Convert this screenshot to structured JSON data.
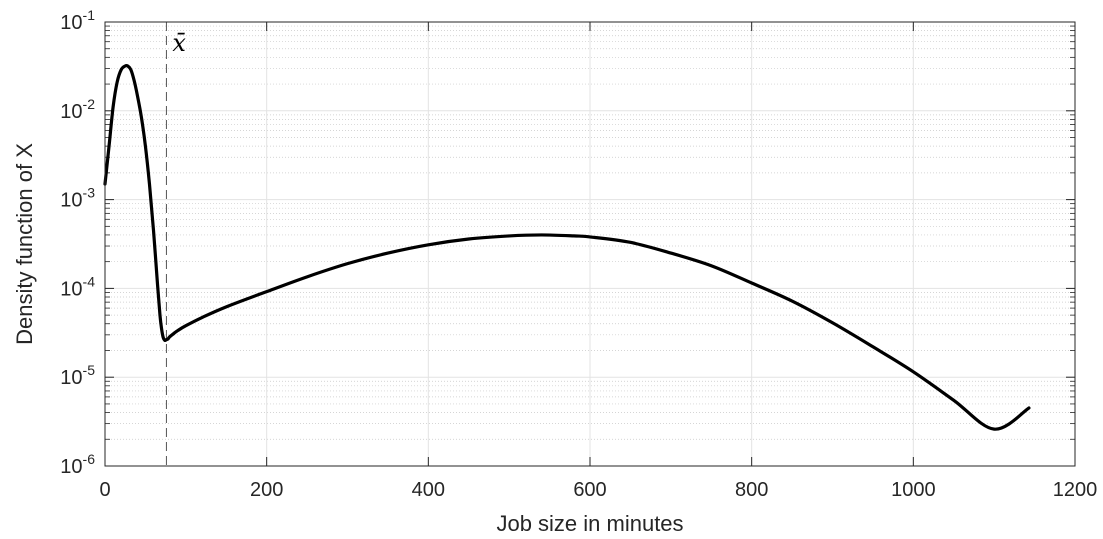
{
  "chart_data": {
    "type": "line",
    "xlabel": "Job size in minutes",
    "ylabel": "Density function of X",
    "xlim": [
      0,
      1200
    ],
    "ylim": [
      1e-06,
      0.1
    ],
    "yscale": "log",
    "grid": true,
    "x_ticks": [
      0,
      200,
      400,
      600,
      800,
      1000,
      1200
    ],
    "x_tick_labels": [
      "0",
      "200",
      "400",
      "600",
      "800",
      "1000",
      "1200"
    ],
    "y_ticks": [
      {
        "base": "10",
        "exp": "-6"
      },
      {
        "base": "10",
        "exp": "-5"
      },
      {
        "base": "10",
        "exp": "-4"
      },
      {
        "base": "10",
        "exp": "-3"
      },
      {
        "base": "10",
        "exp": "-2"
      },
      {
        "base": "10",
        "exp": "-1"
      }
    ],
    "series": [
      {
        "x": [
          0,
          5,
          10,
          15,
          20,
          25,
          28,
          32,
          36,
          40,
          45,
          50,
          55,
          60,
          65,
          68,
          70,
          72,
          74,
          76,
          78,
          80,
          85,
          90,
          100,
          120,
          150,
          200,
          250,
          300,
          350,
          400,
          450,
          500,
          540,
          580,
          600,
          650,
          700,
          750,
          800,
          850,
          900,
          950,
          1000,
          1050,
          1100,
          1143
        ],
        "y": [
          0.0015,
          0.004,
          0.011,
          0.021,
          0.029,
          0.032,
          0.032,
          0.029,
          0.022,
          0.015,
          0.0085,
          0.004,
          0.0015,
          0.00045,
          0.00011,
          5e-05,
          3.5e-05,
          2.8e-05,
          2.6e-05,
          2.65e-05,
          2.7e-05,
          2.85e-05,
          3.1e-05,
          3.35e-05,
          3.8e-05,
          4.7e-05,
          6.2e-05,
          9.2e-05,
          0.000135,
          0.00019,
          0.00025,
          0.00031,
          0.00036,
          0.00039,
          0.0004,
          0.00039,
          0.00038,
          0.00033,
          0.00025,
          0.00018,
          0.000115,
          7.2e-05,
          4.1e-05,
          2.2e-05,
          1.15e-05,
          5.5e-06,
          2.6e-06,
          4.5e-06
        ],
        "color": "#000000"
      }
    ],
    "marker": {
      "x": 76,
      "label": "x̄"
    }
  }
}
